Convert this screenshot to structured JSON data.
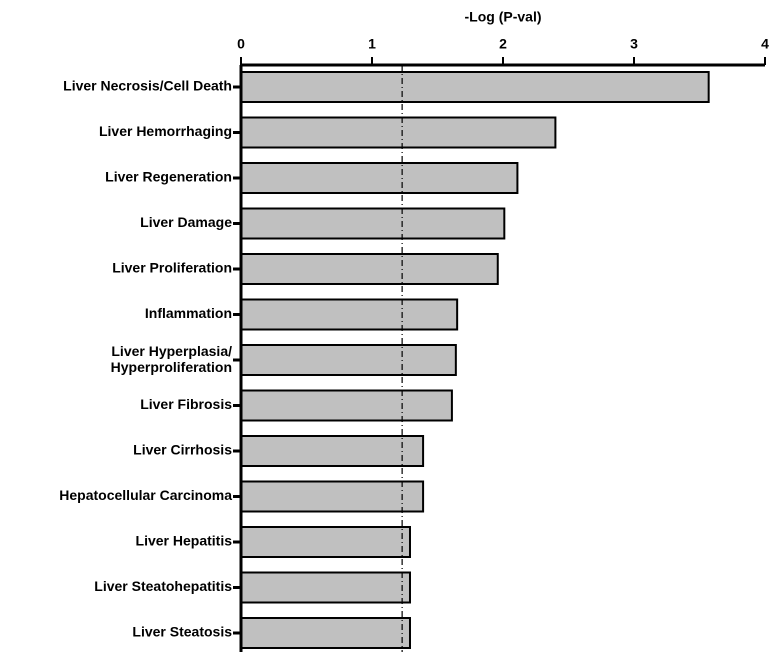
{
  "chart_data": {
    "type": "barh",
    "title": "-Log (P-val)",
    "categories": [
      "Liver Necrosis/Cell Death",
      "Liver Hemorrhaging",
      "Liver Regeneration",
      "Liver Damage",
      "Liver Proliferation",
      "Inflammation",
      "Liver Hyperplasia/\nHyperproliferation",
      "Liver Fibrosis",
      "Liver Cirrhosis",
      "Hepatocellular Carcinoma",
      "Liver Hepatitis",
      "Liver Steatohepatitis",
      "Liver Steatosis"
    ],
    "values": [
      3.57,
      2.4,
      2.11,
      2.01,
      1.96,
      1.65,
      1.64,
      1.61,
      1.39,
      1.39,
      1.29,
      1.29,
      1.29
    ],
    "color": "#c0c0c0",
    "xlim": [
      0,
      4
    ],
    "xticks": [
      0,
      1,
      2,
      3,
      4
    ],
    "threshold": 1.23
  }
}
